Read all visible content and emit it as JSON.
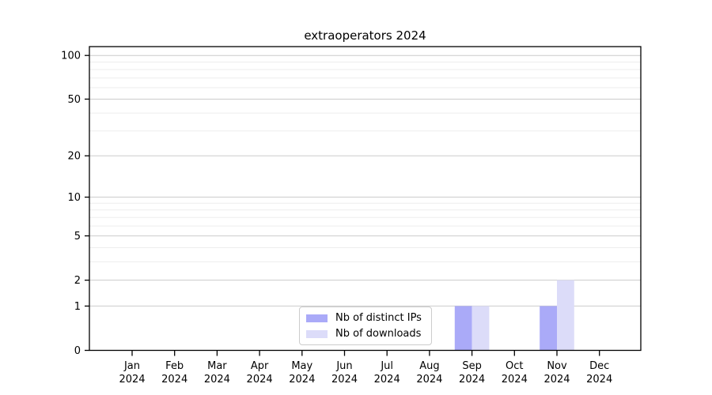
{
  "chart_data": {
    "type": "bar",
    "title": "extraoperators 2024",
    "categories": [
      "Jan",
      "Feb",
      "Mar",
      "Apr",
      "May",
      "Jun",
      "Jul",
      "Aug",
      "Sep",
      "Oct",
      "Nov",
      "Dec"
    ],
    "year_label": "2024",
    "series": [
      {
        "name": "Nb of distinct IPs",
        "color": "#aaaaf8",
        "values": [
          0,
          0,
          0,
          0,
          0,
          0,
          0,
          0,
          1,
          0,
          1,
          0
        ]
      },
      {
        "name": "Nb of downloads",
        "color": "#dcdcf9",
        "values": [
          0,
          0,
          0,
          0,
          0,
          0,
          0,
          0,
          1,
          0,
          2,
          0
        ]
      }
    ],
    "xlabel": "",
    "ylabel": "",
    "yscale": "log1p",
    "yticks": [
      0,
      1,
      2,
      5,
      10,
      20,
      50,
      100
    ],
    "minor_yticks": [
      3,
      4,
      6,
      7,
      8,
      9,
      30,
      40,
      60,
      70,
      80,
      90
    ],
    "ylim": [
      0,
      116
    ],
    "grid": "horizontal",
    "legend_position": "lower-center-inside"
  },
  "colors": {
    "bar_distinct_ips": "#aaaaf8",
    "bar_downloads": "#dcdcf9",
    "major_grid": "#cccccc",
    "minor_grid": "#ededed",
    "axis": "#000000",
    "tick_text": "#000000",
    "legend_border": "#cccccc"
  }
}
